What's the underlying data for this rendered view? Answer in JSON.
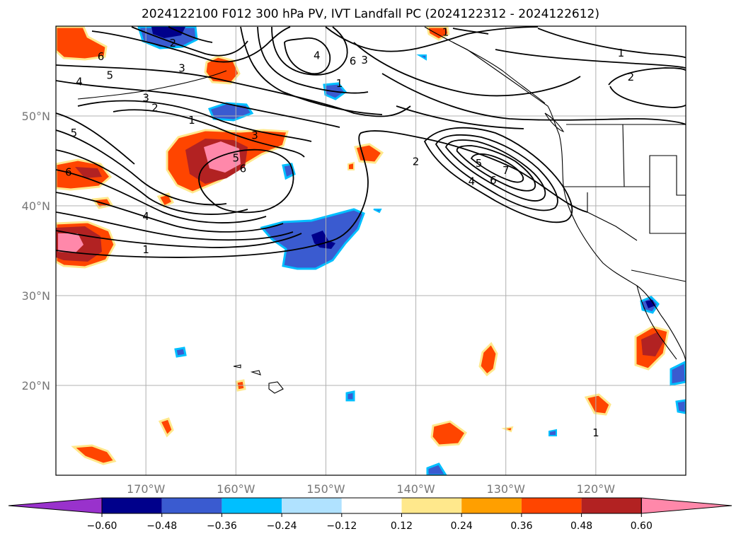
{
  "title": "2024122100 F012 300 hPa PV, IVT Landfall PC (2024122312 - 2024122612)",
  "map": {
    "projection": "equirectangular",
    "lon_range": [
      -180,
      -110
    ],
    "lat_range": [
      10,
      60
    ],
    "gridlines": true,
    "lat_ticks": [
      {
        "value": 50,
        "label": "50°N"
      },
      {
        "value": 40,
        "label": "40°N"
      },
      {
        "value": 30,
        "label": "30°N"
      },
      {
        "value": 20,
        "label": "20°N"
      }
    ],
    "lon_ticks": [
      {
        "value": -170,
        "label": "170°W"
      },
      {
        "value": -160,
        "label": "160°W"
      },
      {
        "value": -150,
        "label": "150°W"
      },
      {
        "value": -140,
        "label": "140°W"
      },
      {
        "value": -130,
        "label": "130°W"
      },
      {
        "value": -120,
        "label": "120°W"
      }
    ],
    "contour_labels": [
      {
        "text": "6",
        "lon": -175,
        "lat": 56.7
      },
      {
        "text": "5",
        "lon": -174,
        "lat": 54.6
      },
      {
        "text": "4",
        "lon": -177.4,
        "lat": 53.9
      },
      {
        "text": "2",
        "lon": -167,
        "lat": 58.2
      },
      {
        "text": "3",
        "lon": -166,
        "lat": 55.4
      },
      {
        "text": "3",
        "lon": -170,
        "lat": 52.1
      },
      {
        "text": "2",
        "lon": -169,
        "lat": 51
      },
      {
        "text": "1",
        "lon": -164.9,
        "lat": 49.6
      },
      {
        "text": "5",
        "lon": -178,
        "lat": 48.2
      },
      {
        "text": "6",
        "lon": -178.6,
        "lat": 43.8
      },
      {
        "text": "3",
        "lon": -157.9,
        "lat": 47.9
      },
      {
        "text": "5",
        "lon": -160,
        "lat": 45.4
      },
      {
        "text": "6",
        "lon": -159.2,
        "lat": 44.2
      },
      {
        "text": "4",
        "lon": -170,
        "lat": 38.9
      },
      {
        "text": "1",
        "lon": -170,
        "lat": 35.2
      },
      {
        "text": "3",
        "lon": -145.7,
        "lat": 56.3
      },
      {
        "text": "6",
        "lon": -147,
        "lat": 56.2
      },
      {
        "text": "1",
        "lon": -148.5,
        "lat": 53.7
      },
      {
        "text": "4",
        "lon": -151,
        "lat": 56.8
      },
      {
        "text": "1",
        "lon": -136.7,
        "lat": 59.4
      },
      {
        "text": "2",
        "lon": -140,
        "lat": 45
      },
      {
        "text": "5",
        "lon": -133,
        "lat": 44.8
      },
      {
        "text": "4",
        "lon": -133.8,
        "lat": 42.8
      },
      {
        "text": "6",
        "lon": -131.4,
        "lat": 42.9
      },
      {
        "text": "7",
        "lon": -130,
        "lat": 44
      },
      {
        "text": "1",
        "lon": -117.2,
        "lat": 57.1
      },
      {
        "text": "2",
        "lon": -116.1,
        "lat": 54.4
      },
      {
        "text": "1",
        "lon": -120,
        "lat": 14.8
      }
    ],
    "colors": {
      "contour": "#000000",
      "grid": "#b0b0b0",
      "coast": "#000000"
    }
  },
  "colorbar": {
    "ticks": [
      "−0.60",
      "−0.48",
      "−0.36",
      "−0.24",
      "−0.12",
      "0.12",
      "0.24",
      "0.36",
      "0.48",
      "0.60"
    ],
    "colors": [
      "#9932cc",
      "#00008b",
      "#3a5bd0",
      "#00bfff",
      "#b0e2ff",
      "#ffffff",
      "#ffe88c",
      "#ff9f00",
      "#ff4500",
      "#b22222",
      "#ff88aa"
    ]
  }
}
